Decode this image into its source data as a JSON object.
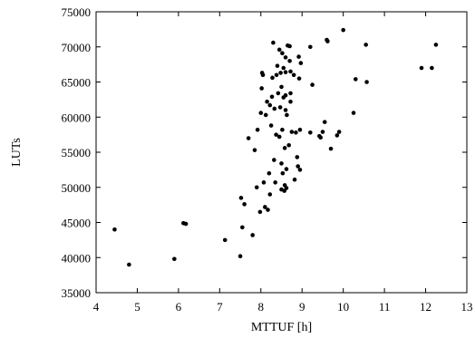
{
  "chart_data": {
    "type": "scatter",
    "xlabel": "MTTUF [h]",
    "ylabel": "LUTs",
    "xlim": [
      4,
      13
    ],
    "ylim": [
      35000,
      75000
    ],
    "x_ticks": [
      "4",
      "5",
      "6",
      "7",
      "8",
      "9",
      "10",
      "11",
      "12",
      "13"
    ],
    "y_ticks": [
      "35000",
      "40000",
      "45000",
      "50000",
      "55000",
      "60000",
      "65000",
      "70000",
      "75000"
    ],
    "grid": false,
    "legend": "none",
    "marker_color": "#000000",
    "points": [
      [
        4.45,
        44000
      ],
      [
        4.8,
        39000
      ],
      [
        5.9,
        39800
      ],
      [
        6.12,
        44900
      ],
      [
        6.18,
        44800
      ],
      [
        7.13,
        42500
      ],
      [
        7.5,
        40200
      ],
      [
        7.52,
        48500
      ],
      [
        7.55,
        44300
      ],
      [
        7.6,
        47600
      ],
      [
        7.7,
        57000
      ],
      [
        7.8,
        43200
      ],
      [
        7.85,
        55300
      ],
      [
        7.9,
        50000
      ],
      [
        7.92,
        58200
      ],
      [
        7.98,
        46500
      ],
      [
        8.0,
        60600
      ],
      [
        8.02,
        64100
      ],
      [
        8.03,
        66300
      ],
      [
        8.05,
        66000
      ],
      [
        8.07,
        50700
      ],
      [
        8.1,
        47200
      ],
      [
        8.12,
        60300
      ],
      [
        8.15,
        62200
      ],
      [
        8.17,
        46800
      ],
      [
        8.2,
        52000
      ],
      [
        8.22,
        49000
      ],
      [
        8.22,
        61700
      ],
      [
        8.25,
        58800
      ],
      [
        8.27,
        62900
      ],
      [
        8.28,
        65600
      ],
      [
        8.3,
        70600
      ],
      [
        8.32,
        53900
      ],
      [
        8.33,
        61200
      ],
      [
        8.35,
        50700
      ],
      [
        8.37,
        57500
      ],
      [
        8.38,
        66000
      ],
      [
        8.4,
        67300
      ],
      [
        8.42,
        63400
      ],
      [
        8.45,
        57200
      ],
      [
        8.45,
        69600
      ],
      [
        8.47,
        61400
      ],
      [
        8.48,
        66300
      ],
      [
        8.5,
        49700
      ],
      [
        8.5,
        53400
      ],
      [
        8.5,
        64300
      ],
      [
        8.52,
        58200
      ],
      [
        8.52,
        69100
      ],
      [
        8.53,
        52000
      ],
      [
        8.55,
        62800
      ],
      [
        8.55,
        67000
      ],
      [
        8.57,
        49500
      ],
      [
        8.58,
        50300
      ],
      [
        8.58,
        55600
      ],
      [
        8.6,
        61000
      ],
      [
        8.6,
        63100
      ],
      [
        8.6,
        66400
      ],
      [
        8.6,
        68500
      ],
      [
        8.62,
        52600
      ],
      [
        8.62,
        49900
      ],
      [
        8.63,
        60300
      ],
      [
        8.65,
        70200
      ],
      [
        8.68,
        56000
      ],
      [
        8.7,
        70100
      ],
      [
        8.7,
        68000
      ],
      [
        8.72,
        66500
      ],
      [
        8.72,
        63400
      ],
      [
        8.72,
        62200
      ],
      [
        8.75,
        57900
      ],
      [
        8.8,
        66000
      ],
      [
        8.82,
        51100
      ],
      [
        8.85,
        57800
      ],
      [
        8.88,
        54300
      ],
      [
        8.9,
        53000
      ],
      [
        8.92,
        68600
      ],
      [
        8.93,
        65500
      ],
      [
        8.95,
        52500
      ],
      [
        8.95,
        58200
      ],
      [
        8.97,
        67700
      ],
      [
        9.2,
        57800
      ],
      [
        9.2,
        70000
      ],
      [
        9.25,
        64600
      ],
      [
        9.42,
        57300
      ],
      [
        9.45,
        57100
      ],
      [
        9.5,
        57900
      ],
      [
        9.55,
        59300
      ],
      [
        9.6,
        71000
      ],
      [
        9.62,
        70800
      ],
      [
        9.7,
        55500
      ],
      [
        9.85,
        57400
      ],
      [
        9.9,
        57900
      ],
      [
        10.0,
        72400
      ],
      [
        10.25,
        60600
      ],
      [
        10.3,
        65400
      ],
      [
        10.55,
        70300
      ],
      [
        10.57,
        65000
      ],
      [
        11.9,
        67000
      ],
      [
        12.15,
        67000
      ],
      [
        12.25,
        70300
      ]
    ]
  }
}
